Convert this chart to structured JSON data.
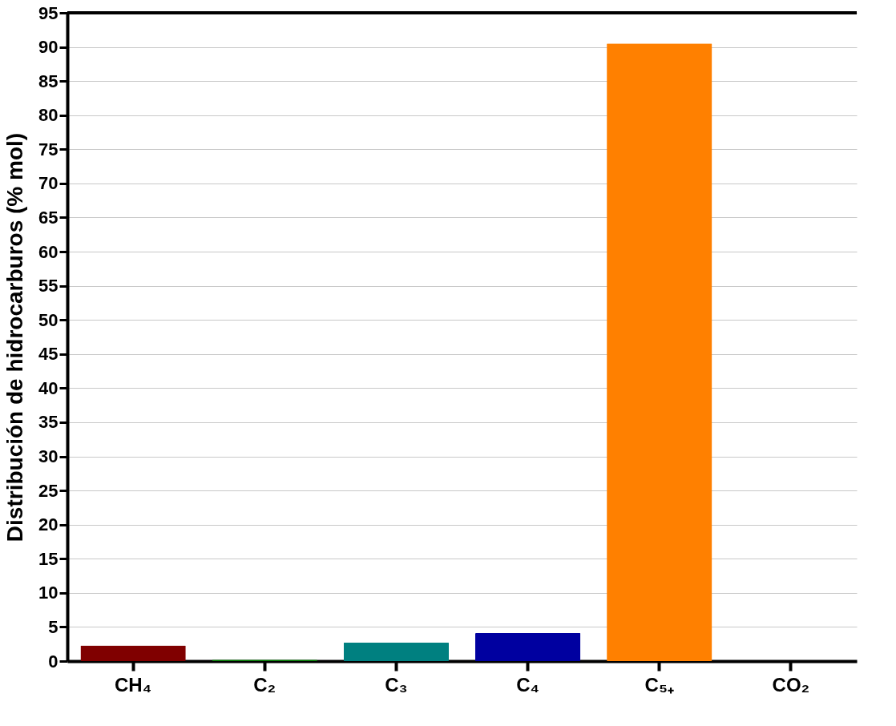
{
  "chart_data": {
    "type": "bar",
    "ylabel": "Distribución de hidrocarburos (% mol)",
    "categories": [
      "CH₄",
      "C₂",
      "C₃",
      "C₄",
      "C₅₊",
      "CO₂"
    ],
    "values": [
      2.3,
      0.2,
      2.7,
      4.1,
      90.5,
      0
    ],
    "colors": [
      "#800000",
      "#008000",
      "#008080",
      "#0000a0",
      "#ff8000",
      "#000000"
    ],
    "ylim": [
      0,
      95
    ],
    "yticks": [
      0,
      5,
      10,
      15,
      20,
      25,
      30,
      35,
      40,
      45,
      50,
      55,
      60,
      65,
      70,
      75,
      80,
      85,
      90,
      95
    ],
    "grid": "y"
  }
}
